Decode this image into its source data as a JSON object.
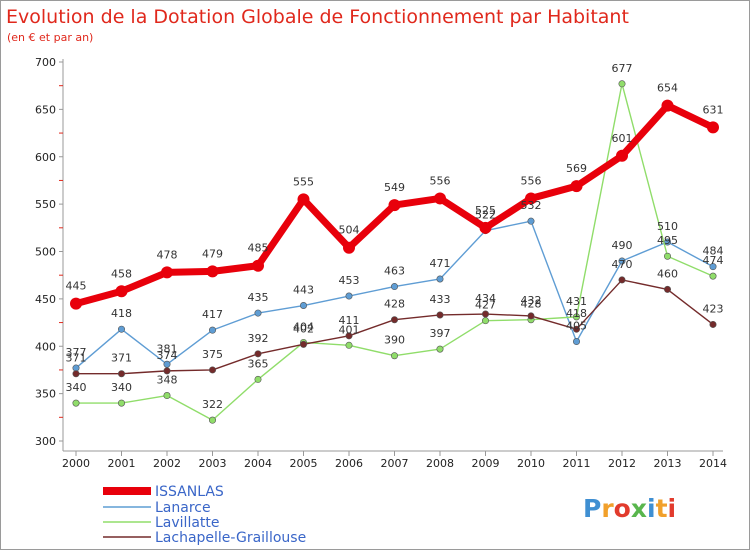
{
  "chart_data": {
    "type": "line",
    "title": "Evolution de la Dotation Globale de Fonctionnement par Habitant",
    "subtitle": "(en € et par an)",
    "xlabel": "",
    "ylabel": "",
    "x": [
      "2000",
      "2001",
      "2002",
      "2003",
      "2004",
      "2005",
      "2006",
      "2007",
      "2008",
      "2009",
      "2010",
      "2011",
      "2012",
      "2013",
      "2014"
    ],
    "ylim": [
      300,
      700
    ],
    "yticks": [
      "300",
      "350",
      "400",
      "450",
      "500",
      "550",
      "600",
      "650",
      "700"
    ],
    "grid": false,
    "legend_position": "bottom-left",
    "series": [
      {
        "name": "ISSANLAS",
        "color": "#e8000b",
        "emphasis": true,
        "values": [
          445,
          458,
          478,
          479,
          485,
          555,
          504,
          549,
          556,
          525,
          556,
          569,
          601,
          654,
          631
        ],
        "labels": [
          "445",
          "458",
          "478",
          "479",
          "485",
          "555",
          "504",
          "549",
          "556",
          "525",
          "556",
          "569",
          "601",
          "654",
          "631"
        ]
      },
      {
        "name": "Lanarce",
        "color": "#5f9dd4",
        "emphasis": false,
        "values": [
          377,
          418,
          381,
          417,
          435,
          443,
          453,
          463,
          471,
          522,
          532,
          405,
          490,
          510,
          484
        ],
        "labels": [
          "377",
          "418",
          "381",
          "417",
          "435",
          "443",
          "453",
          "463",
          "471",
          "522",
          "532",
          "405",
          "490",
          "510",
          "484"
        ]
      },
      {
        "name": "Lavillatte",
        "color": "#90dd6a",
        "emphasis": false,
        "values": [
          340,
          340,
          348,
          322,
          365,
          404,
          401,
          390,
          397,
          427,
          428,
          431,
          677,
          495,
          474
        ],
        "labels": [
          "340",
          "340",
          "348",
          "322",
          "365",
          "404",
          "401",
          "390",
          "397",
          "427",
          "428",
          "431",
          "677",
          "495",
          "474"
        ]
      },
      {
        "name": "Lachapelle-Graillouse",
        "color": "#742b2b",
        "emphasis": false,
        "values": [
          371,
          371,
          374,
          375,
          392,
          402,
          411,
          428,
          433,
          434,
          432,
          418,
          470,
          460,
          423
        ],
        "labels": [
          "371",
          "371",
          "374",
          "375",
          "392",
          "402",
          "411",
          "428",
          "433",
          "434",
          "432",
          "418",
          "470",
          "460",
          "423"
        ]
      }
    ]
  },
  "branding": {
    "logo_text": "Proxiti",
    "logo_colors": [
      "#3f8fd2",
      "#f1a02b",
      "#e23b2d",
      "#59b64d",
      "#3f8fd2",
      "#f1a02b",
      "#e23b2d"
    ]
  }
}
